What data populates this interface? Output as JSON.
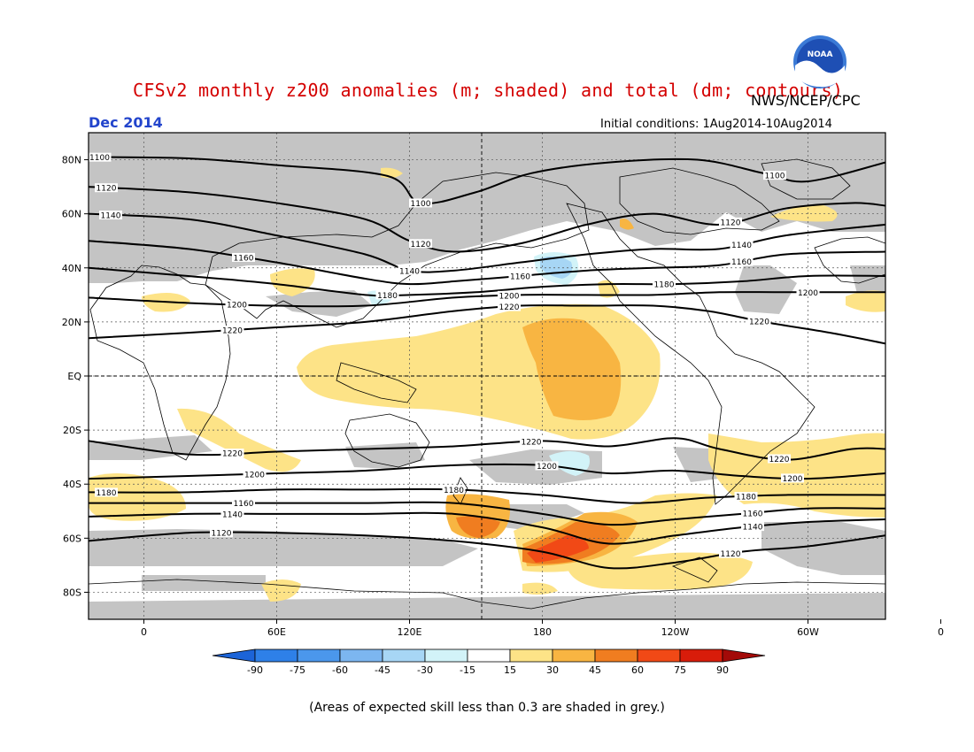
{
  "title": "CFSv2 monthly z200 anomalies (m; shaded) and total (dm; contours)",
  "agency": "NWS/NCEP/CPC",
  "logo_text": "NOAA",
  "month": "Dec 2014",
  "initial_conditions": "Initial conditions: 1Aug2014-10Aug2014",
  "footnote": "(Areas of expected skill less than 0.3 are shaded in grey.)",
  "map": {
    "lon_range": [
      -25,
      335
    ],
    "lat_range": [
      -90,
      90
    ],
    "lat_labels": [
      {
        "lat": 80,
        "text": "80N"
      },
      {
        "lat": 60,
        "text": "60N"
      },
      {
        "lat": 40,
        "text": "40N"
      },
      {
        "lat": 20,
        "text": "20N"
      },
      {
        "lat": 0,
        "text": "EQ"
      },
      {
        "lat": -20,
        "text": "20S"
      },
      {
        "lat": -40,
        "text": "40S"
      },
      {
        "lat": -60,
        "text": "60S"
      },
      {
        "lat": -80,
        "text": "80S"
      }
    ],
    "lon_labels": [
      {
        "lon": 0,
        "text": "0"
      },
      {
        "lon": 60,
        "text": "60E"
      },
      {
        "lon": 120,
        "text": "120E"
      },
      {
        "lon": 180,
        "text": "180"
      },
      {
        "lon": 240,
        "text": "120W"
      },
      {
        "lon": 300,
        "text": "60W"
      },
      {
        "lon": 360,
        "text": "0"
      }
    ],
    "contours": [
      {
        "level": "1100",
        "label_lons": [
          -20,
          125,
          285
        ],
        "points": [
          [
            -25,
            81
          ],
          [
            20,
            80.5
          ],
          [
            60,
            78
          ],
          [
            110,
            74
          ],
          [
            125,
            64
          ],
          [
            150,
            68
          ],
          [
            175,
            75
          ],
          [
            210,
            79
          ],
          [
            250,
            80
          ],
          [
            280,
            75
          ],
          [
            300,
            72
          ],
          [
            335,
            79
          ]
        ]
      },
      {
        "level": "1120",
        "label_lons": [
          -17,
          125,
          265
        ],
        "points": [
          [
            -25,
            70
          ],
          [
            20,
            68
          ],
          [
            60,
            64
          ],
          [
            100,
            58
          ],
          [
            120,
            50
          ],
          [
            140,
            46
          ],
          [
            170,
            49
          ],
          [
            200,
            56
          ],
          [
            230,
            60
          ],
          [
            260,
            56
          ],
          [
            290,
            62
          ],
          [
            320,
            64
          ],
          [
            335,
            63
          ]
        ]
      },
      {
        "level": "1140",
        "label_lons": [
          -15,
          120,
          270
        ],
        "points": [
          [
            -25,
            60
          ],
          [
            20,
            58
          ],
          [
            60,
            52
          ],
          [
            100,
            45
          ],
          [
            120,
            39
          ],
          [
            140,
            39
          ],
          [
            170,
            42
          ],
          [
            200,
            45
          ],
          [
            230,
            47
          ],
          [
            260,
            47
          ],
          [
            290,
            52
          ],
          [
            335,
            56
          ]
        ]
      },
      {
        "level": "1160",
        "label_lons": [
          45,
          170,
          270
        ],
        "points": [
          [
            -25,
            50
          ],
          [
            20,
            47
          ],
          [
            60,
            42
          ],
          [
            100,
            36
          ],
          [
            120,
            34
          ],
          [
            140,
            35
          ],
          [
            170,
            37
          ],
          [
            200,
            39
          ],
          [
            230,
            40
          ],
          [
            260,
            41
          ],
          [
            290,
            45
          ],
          [
            335,
            46
          ]
        ]
      },
      {
        "level": "1180",
        "label_lons": [
          110,
          235
        ],
        "points": [
          [
            -25,
            40
          ],
          [
            20,
            37
          ],
          [
            60,
            34
          ],
          [
            100,
            30
          ],
          [
            120,
            30
          ],
          [
            150,
            31
          ],
          [
            180,
            33
          ],
          [
            210,
            34
          ],
          [
            240,
            34
          ],
          [
            270,
            35
          ],
          [
            300,
            37
          ],
          [
            335,
            37
          ]
        ]
      },
      {
        "level": "1200",
        "label_lons": [
          42,
          165,
          300
        ],
        "points": [
          [
            -25,
            29
          ],
          [
            20,
            27
          ],
          [
            60,
            26
          ],
          [
            100,
            26
          ],
          [
            140,
            29
          ],
          [
            170,
            30
          ],
          [
            200,
            30
          ],
          [
            230,
            30
          ],
          [
            260,
            31
          ],
          [
            290,
            31
          ],
          [
            335,
            31
          ]
        ]
      },
      {
        "level": "1220",
        "label_lons": [
          40,
          165,
          278
        ],
        "points": [
          [
            -25,
            14
          ],
          [
            20,
            16
          ],
          [
            60,
            18
          ],
          [
            100,
            20
          ],
          [
            140,
            24
          ],
          [
            170,
            26
          ],
          [
            200,
            26
          ],
          [
            230,
            26
          ],
          [
            255,
            24
          ],
          [
            280,
            20
          ],
          [
            310,
            16
          ],
          [
            335,
            12
          ]
        ]
      },
      {
        "level": "1220",
        "label_lons": [
          40,
          175,
          287
        ],
        "points": [
          [
            -25,
            -24
          ],
          [
            20,
            -29
          ],
          [
            60,
            -28
          ],
          [
            100,
            -27
          ],
          [
            140,
            -26
          ],
          [
            180,
            -24
          ],
          [
            210,
            -26
          ],
          [
            240,
            -23
          ],
          [
            260,
            -27
          ],
          [
            290,
            -31
          ],
          [
            320,
            -27
          ],
          [
            335,
            -27
          ]
        ]
      },
      {
        "level": "1200",
        "label_lons": [
          50,
          182,
          293
        ],
        "points": [
          [
            -25,
            -38
          ],
          [
            20,
            -37
          ],
          [
            60,
            -36
          ],
          [
            100,
            -35
          ],
          [
            140,
            -33
          ],
          [
            180,
            -33
          ],
          [
            210,
            -36
          ],
          [
            240,
            -35
          ],
          [
            270,
            -37
          ],
          [
            300,
            -38
          ],
          [
            335,
            -36
          ]
        ]
      },
      {
        "level": "1180",
        "label_lons": [
          -17,
          140,
          272
        ],
        "points": [
          [
            -25,
            -43
          ],
          [
            20,
            -43
          ],
          [
            60,
            -42
          ],
          [
            100,
            -42
          ],
          [
            140,
            -42
          ],
          [
            180,
            -44
          ],
          [
            220,
            -47
          ],
          [
            255,
            -45
          ],
          [
            290,
            -44
          ],
          [
            335,
            -44
          ]
        ]
      },
      {
        "level": "1160",
        "label_lons": [
          45,
          275
        ],
        "points": [
          [
            -25,
            -47
          ],
          [
            20,
            -47
          ],
          [
            60,
            -47
          ],
          [
            100,
            -47
          ],
          [
            140,
            -47
          ],
          [
            180,
            -51
          ],
          [
            210,
            -55
          ],
          [
            240,
            -53
          ],
          [
            270,
            -51
          ],
          [
            300,
            -49
          ],
          [
            335,
            -49
          ]
        ]
      },
      {
        "level": "1140",
        "label_lons": [
          40,
          275
        ],
        "points": [
          [
            -25,
            -52
          ],
          [
            20,
            -51
          ],
          [
            60,
            -51
          ],
          [
            100,
            -51
          ],
          [
            140,
            -51
          ],
          [
            180,
            -56
          ],
          [
            210,
            -62
          ],
          [
            240,
            -59
          ],
          [
            270,
            -56
          ],
          [
            300,
            -54
          ],
          [
            335,
            -53
          ]
        ]
      },
      {
        "level": "1120",
        "label_lons": [
          35,
          265
        ],
        "points": [
          [
            -25,
            -61
          ],
          [
            20,
            -58
          ],
          [
            60,
            -58
          ],
          [
            100,
            -59
          ],
          [
            140,
            -61
          ],
          [
            180,
            -65
          ],
          [
            210,
            -71
          ],
          [
            240,
            -69
          ],
          [
            270,
            -65
          ],
          [
            300,
            -63
          ],
          [
            335,
            -59
          ]
        ]
      }
    ]
  },
  "legend": {
    "ticks": [
      "-90",
      "-75",
      "-60",
      "-45",
      "-30",
      "-15",
      "15",
      "30",
      "45",
      "60",
      "75",
      "90"
    ],
    "colors": [
      "#1c64d8",
      "#2e80e8",
      "#4b97ec",
      "#7cb6f0",
      "#a7d6f5",
      "#d2f3f8",
      "#ffffff",
      "#fde387",
      "#f8b542",
      "#f07d20",
      "#f14916",
      "#d81c0a",
      "#a30a08"
    ]
  }
}
